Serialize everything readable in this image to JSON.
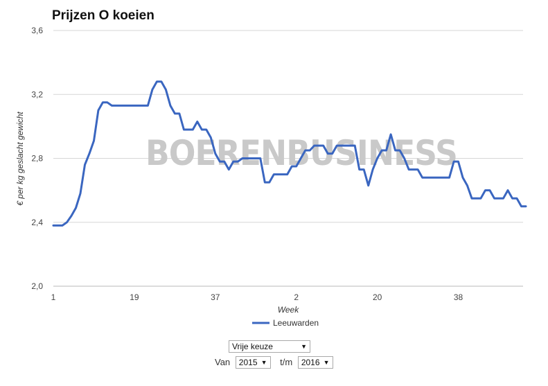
{
  "title": "Prijzen O koeien",
  "chart_data": {
    "type": "line",
    "title": "Prijzen O koeien",
    "xlabel": "Week",
    "ylabel": "€ per kg geslacht gewicht",
    "ylim": [
      2.0,
      3.6
    ],
    "yticks": [
      "2,0",
      "2,4",
      "2,8",
      "3,2",
      "3,6"
    ],
    "xticks": [
      {
        "index": 0,
        "label": "1"
      },
      {
        "index": 18,
        "label": "19"
      },
      {
        "index": 36,
        "label": "37"
      },
      {
        "index": 54,
        "label": "2"
      },
      {
        "index": 72,
        "label": "20"
      },
      {
        "index": 90,
        "label": "38"
      }
    ],
    "grid": true,
    "legend": "bottom-center",
    "series": [
      {
        "name": "Leeuwarden",
        "color": "#3a66c0",
        "values": [
          2.38,
          2.38,
          2.38,
          2.4,
          2.44,
          2.49,
          2.58,
          2.76,
          2.83,
          2.91,
          3.1,
          3.15,
          3.15,
          3.13,
          3.13,
          3.13,
          3.13,
          3.13,
          3.13,
          3.13,
          3.13,
          3.13,
          3.23,
          3.28,
          3.28,
          3.23,
          3.13,
          3.08,
          3.08,
          2.98,
          2.98,
          2.98,
          3.03,
          2.98,
          2.98,
          2.93,
          2.83,
          2.78,
          2.78,
          2.73,
          2.78,
          2.78,
          2.8,
          2.8,
          2.8,
          2.8,
          2.8,
          2.65,
          2.65,
          2.7,
          2.7,
          2.7,
          2.7,
          2.75,
          2.75,
          2.8,
          2.85,
          2.85,
          2.88,
          2.88,
          2.88,
          2.83,
          2.83,
          2.88,
          2.88,
          2.88,
          2.88,
          2.88,
          2.73,
          2.73,
          2.63,
          2.73,
          2.8,
          2.85,
          2.85,
          2.95,
          2.85,
          2.85,
          2.8,
          2.73,
          2.73,
          2.73,
          2.68,
          2.68,
          2.68,
          2.68,
          2.68,
          2.68,
          2.68,
          2.78,
          2.78,
          2.68,
          2.63,
          2.55,
          2.55,
          2.55,
          2.6,
          2.6,
          2.55,
          2.55,
          2.55,
          2.6,
          2.55,
          2.55,
          2.5,
          2.5
        ]
      }
    ]
  },
  "watermark": "BOERENBUSINESS",
  "controls": {
    "keuze_value": "Vrije keuze",
    "van_label": "Van",
    "van_value": "2015",
    "tm_label": "t/m",
    "tm_value": "2016"
  },
  "icons": {
    "dropdown": "chevron-down-icon"
  }
}
